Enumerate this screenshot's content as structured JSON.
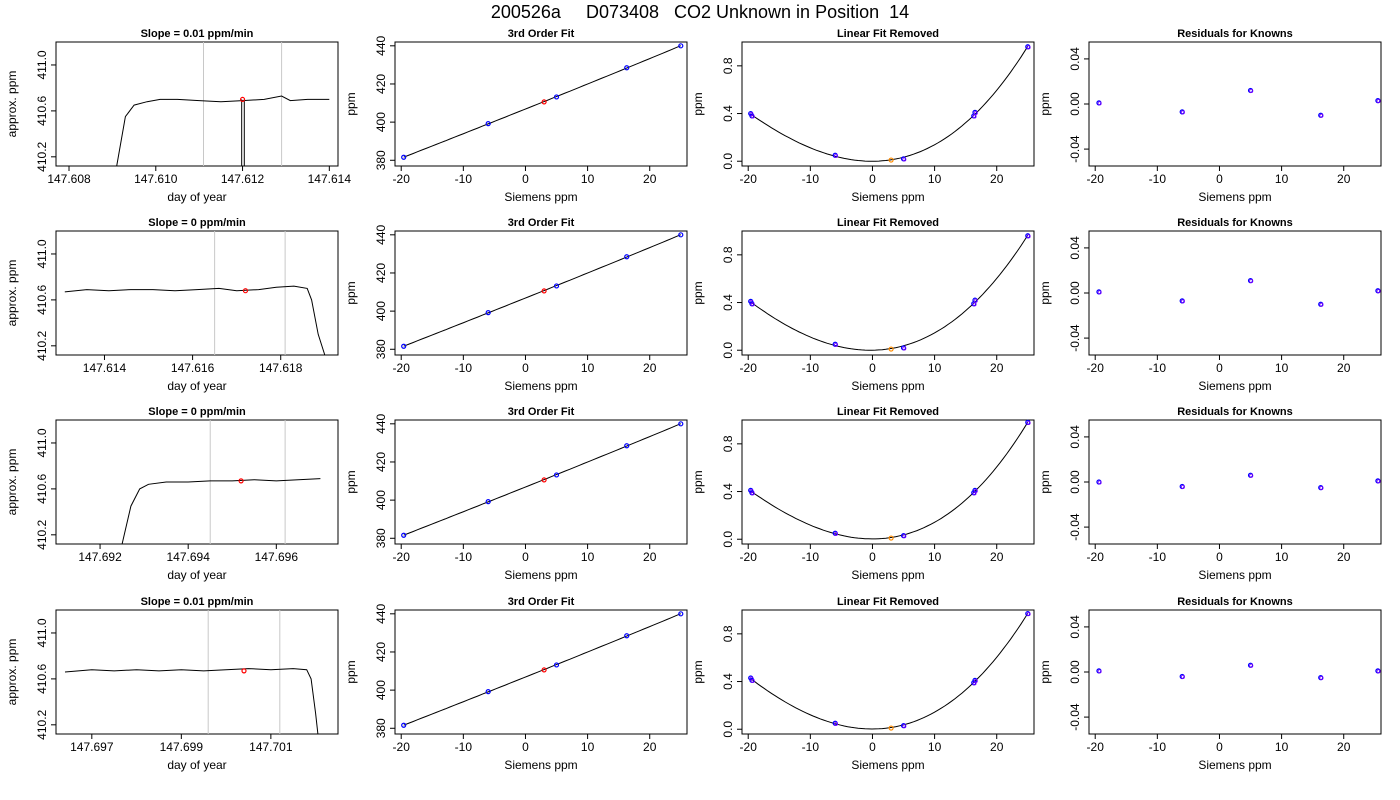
{
  "title": "200526a     D073408   CO2 Unknown in Position  14",
  "colors": {
    "axis": "#000000",
    "known": "#0000ff",
    "unknown": "#ff0000",
    "unknown_resid": "#ff8c00",
    "resid": "#7b00ff",
    "vline": "#c8c8c8"
  },
  "chart_data": [
    {
      "row": 1,
      "timeseries": {
        "type": "line",
        "title": "Slope =  0.01  ppm/min",
        "xlabel": "day of year",
        "ylabel": "approx. ppm",
        "xlim": [
          147.6077,
          147.6142
        ],
        "ylim": [
          410.12,
          411.2
        ],
        "xticks": [
          "147.608",
          "147.610",
          "147.612",
          "147.614"
        ],
        "xtick_values": [
          147.608,
          147.61,
          147.612,
          147.614
        ],
        "yticks": [
          "410.2",
          "410.6",
          "411.0"
        ],
        "ytick_values": [
          410.2,
          410.6,
          411.0
        ],
        "x": [
          147.6091,
          147.6093,
          147.6095,
          147.6098,
          147.6101,
          147.6105,
          147.611,
          147.6115,
          147.612,
          147.6125,
          147.6129,
          147.6131,
          147.6135,
          147.614
        ],
        "y": [
          410.12,
          410.55,
          410.65,
          410.68,
          410.7,
          410.7,
          410.69,
          410.68,
          410.69,
          410.7,
          410.73,
          410.69,
          410.7,
          410.7
        ],
        "vlines": [
          147.6111,
          147.6129
        ],
        "point": {
          "x": 147.612,
          "y": 410.7
        },
        "spikes": [
          147.61198,
          147.61204
        ]
      },
      "fit": {
        "type": "line",
        "title": "3rd Order Fit",
        "xlabel": "Siemens ppm",
        "ylabel": "ppm",
        "xlim": [
          -21,
          26
        ],
        "ylim": [
          377,
          442
        ],
        "xticks": [
          "-20",
          "-10",
          "0",
          "10",
          "20"
        ],
        "xtick_values": [
          -20,
          -10,
          0,
          10,
          20
        ],
        "yticks": [
          "380",
          "400",
          "420",
          "440"
        ],
        "ytick_values": [
          380,
          400,
          420,
          440
        ],
        "knowns_x": [
          -19.6,
          -6,
          5,
          16.3,
          25
        ],
        "knowns_y": [
          381.6,
          399.2,
          413.2,
          428.5,
          440
        ],
        "unknown": {
          "x": 3,
          "y": 410.6
        }
      },
      "linear_removed": {
        "type": "line",
        "title": "Linear Fit Removed",
        "xlabel": "Siemens ppm",
        "ylabel": "ppm",
        "xlim": [
          -21,
          26
        ],
        "ylim": [
          -0.04,
          1.0
        ],
        "xticks": [
          "-20",
          "-10",
          "0",
          "10",
          "20"
        ],
        "xtick_values": [
          -20,
          -10,
          0,
          10,
          20
        ],
        "yticks": [
          "0.0",
          "0.4",
          "0.8"
        ],
        "ytick_values": [
          0,
          0.4,
          0.8
        ],
        "knowns_x": [
          -19.6,
          -19.4,
          -6,
          5,
          16.3,
          16.5,
          25
        ],
        "knowns_y": [
          0.4,
          0.38,
          0.05,
          0.02,
          0.38,
          0.41,
          0.96
        ],
        "unknown": {
          "x": 3,
          "y": 0.01
        }
      },
      "residuals": {
        "type": "scatter",
        "title": "Residuals for Knowns",
        "xlabel": "Siemens ppm",
        "ylabel": "ppm",
        "xlim": [
          -21,
          26
        ],
        "ylim": [
          -0.055,
          0.055
        ],
        "xticks": [
          "-20",
          "-10",
          "0",
          "10",
          "20"
        ],
        "xtick_values": [
          -20,
          -10,
          0,
          10,
          20
        ],
        "yticks": [
          "-0.04",
          "0.00",
          "0.04"
        ],
        "ytick_values": [
          -0.04,
          0,
          0.04
        ],
        "x": [
          -19.4,
          -6,
          5,
          16.3,
          25.5
        ],
        "y": [
          0.001,
          -0.007,
          0.012,
          -0.01,
          0.003
        ]
      }
    },
    {
      "row": 2,
      "timeseries": {
        "type": "line",
        "title": "Slope =  0  ppm/min",
        "xlabel": "day of year",
        "ylabel": "approx. ppm",
        "xlim": [
          147.6129,
          147.6193
        ],
        "ylim": [
          410.12,
          411.2
        ],
        "xticks": [
          "147.614",
          "147.616",
          "147.618"
        ],
        "xtick_values": [
          147.614,
          147.616,
          147.618
        ],
        "yticks": [
          "410.2",
          "410.6",
          "411.0"
        ],
        "ytick_values": [
          410.2,
          410.6,
          411.0
        ],
        "x": [
          147.6131,
          147.6136,
          147.6141,
          147.6146,
          147.6151,
          147.6156,
          147.6161,
          147.6166,
          147.617,
          147.6175,
          147.6179,
          147.6183,
          147.6186,
          147.6187,
          147.61885,
          147.619
        ],
        "y": [
          410.67,
          410.69,
          410.68,
          410.69,
          410.69,
          410.68,
          410.69,
          410.7,
          410.68,
          410.69,
          410.71,
          410.72,
          410.7,
          410.6,
          410.3,
          410.12
        ],
        "vlines": [
          147.6165,
          147.6181
        ],
        "point": {
          "x": 147.6172,
          "y": 410.68
        },
        "spikes": []
      },
      "fit": {
        "type": "line",
        "title": "3rd Order Fit",
        "xlabel": "Siemens ppm",
        "ylabel": "ppm",
        "xlim": [
          -21,
          26
        ],
        "ylim": [
          377,
          442
        ],
        "xticks": [
          "-20",
          "-10",
          "0",
          "10",
          "20"
        ],
        "xtick_values": [
          -20,
          -10,
          0,
          10,
          20
        ],
        "yticks": [
          "380",
          "400",
          "420",
          "440"
        ],
        "ytick_values": [
          380,
          400,
          420,
          440
        ],
        "knowns_x": [
          -19.6,
          -6,
          5,
          16.3,
          25
        ],
        "knowns_y": [
          381.6,
          399.2,
          413.2,
          428.5,
          440
        ],
        "unknown": {
          "x": 3,
          "y": 410.6
        }
      },
      "linear_removed": {
        "type": "line",
        "title": "Linear Fit Removed",
        "xlabel": "Siemens ppm",
        "ylabel": "ppm",
        "xlim": [
          -21,
          26
        ],
        "ylim": [
          -0.04,
          1.0
        ],
        "xticks": [
          "-20",
          "-10",
          "0",
          "10",
          "20"
        ],
        "xtick_values": [
          -20,
          -10,
          0,
          10,
          20
        ],
        "yticks": [
          "0.0",
          "0.4",
          "0.8"
        ],
        "ytick_values": [
          0,
          0.4,
          0.8
        ],
        "knowns_x": [
          -19.6,
          -19.4,
          -6,
          5,
          16.3,
          16.5,
          25
        ],
        "knowns_y": [
          0.41,
          0.39,
          0.05,
          0.02,
          0.39,
          0.42,
          0.96
        ],
        "unknown": {
          "x": 3,
          "y": 0.01
        }
      },
      "residuals": {
        "type": "scatter",
        "title": "Residuals for Knowns",
        "xlabel": "Siemens ppm",
        "ylabel": "ppm",
        "xlim": [
          -21,
          26
        ],
        "ylim": [
          -0.055,
          0.055
        ],
        "xticks": [
          "-20",
          "-10",
          "0",
          "10",
          "20"
        ],
        "xtick_values": [
          -20,
          -10,
          0,
          10,
          20
        ],
        "yticks": [
          "-0.04",
          "0.00",
          "0.04"
        ],
        "ytick_values": [
          -0.04,
          0,
          0.04
        ],
        "x": [
          -19.4,
          -6,
          5,
          16.3,
          25.5
        ],
        "y": [
          0.001,
          -0.007,
          0.011,
          -0.01,
          0.002
        ]
      }
    },
    {
      "row": 3,
      "timeseries": {
        "type": "line",
        "title": "Slope =  0  ppm/min",
        "xlabel": "day of year",
        "ylabel": "approx. ppm",
        "xlim": [
          147.691,
          147.6974
        ],
        "ylim": [
          410.12,
          411.2
        ],
        "xticks": [
          "147.692",
          "147.694",
          "147.696"
        ],
        "xtick_values": [
          147.692,
          147.694,
          147.696
        ],
        "yticks": [
          "410.2",
          "410.6",
          "411.0"
        ],
        "ytick_values": [
          410.2,
          410.6,
          411.0
        ],
        "x": [
          147.6925,
          147.6927,
          147.6929,
          147.6931,
          147.6935,
          147.694,
          147.6945,
          147.695,
          147.6955,
          147.696,
          147.6965,
          147.697
        ],
        "y": [
          410.12,
          410.45,
          410.6,
          410.64,
          410.66,
          410.66,
          410.67,
          410.67,
          410.68,
          410.67,
          410.68,
          410.69
        ],
        "vlines": [
          147.6945,
          147.6962
        ],
        "point": {
          "x": 147.6952,
          "y": 410.67
        },
        "spikes": []
      },
      "fit": {
        "type": "line",
        "title": "3rd Order Fit",
        "xlabel": "Siemens ppm",
        "ylabel": "ppm",
        "xlim": [
          -21,
          26
        ],
        "ylim": [
          377,
          442
        ],
        "xticks": [
          "-20",
          "-10",
          "0",
          "10",
          "20"
        ],
        "xtick_values": [
          -20,
          -10,
          0,
          10,
          20
        ],
        "yticks": [
          "380",
          "400",
          "420",
          "440"
        ],
        "ytick_values": [
          380,
          400,
          420,
          440
        ],
        "knowns_x": [
          -19.6,
          -6,
          5,
          16.3,
          25
        ],
        "knowns_y": [
          381.6,
          399.2,
          413.2,
          428.5,
          440
        ],
        "unknown": {
          "x": 3,
          "y": 410.6
        }
      },
      "linear_removed": {
        "type": "line",
        "title": "Linear Fit Removed",
        "xlabel": "Siemens ppm",
        "ylabel": "ppm",
        "xlim": [
          -21,
          26
        ],
        "ylim": [
          -0.04,
          1.0
        ],
        "xticks": [
          "-20",
          "-10",
          "0",
          "10",
          "20"
        ],
        "xtick_values": [
          -20,
          -10,
          0,
          10,
          20
        ],
        "yticks": [
          "0.0",
          "0.4",
          "0.8"
        ],
        "ytick_values": [
          0,
          0.4,
          0.8
        ],
        "knowns_x": [
          -19.6,
          -19.4,
          -6,
          5,
          16.3,
          16.5,
          25
        ],
        "knowns_y": [
          0.41,
          0.39,
          0.05,
          0.03,
          0.39,
          0.41,
          0.98
        ],
        "unknown": {
          "x": 3,
          "y": 0.01
        }
      },
      "residuals": {
        "type": "scatter",
        "title": "Residuals for Knowns",
        "xlabel": "Siemens ppm",
        "ylabel": "ppm",
        "xlim": [
          -21,
          26
        ],
        "ylim": [
          -0.055,
          0.055
        ],
        "xticks": [
          "-20",
          "-10",
          "0",
          "10",
          "20"
        ],
        "xtick_values": [
          -20,
          -10,
          0,
          10,
          20
        ],
        "yticks": [
          "-0.04",
          "0.00",
          "0.04"
        ],
        "ytick_values": [
          -0.04,
          0,
          0.04
        ],
        "x": [
          -19.4,
          -6,
          5,
          16.3,
          25.5
        ],
        "y": [
          0.0,
          -0.004,
          0.006,
          -0.005,
          0.001
        ]
      }
    },
    {
      "row": 4,
      "timeseries": {
        "type": "line",
        "title": "Slope =  0.01  ppm/min",
        "xlabel": "day of year",
        "ylabel": "approx. ppm",
        "xlim": [
          147.6962,
          147.7025
        ],
        "ylim": [
          410.12,
          411.2
        ],
        "xticks": [
          "147.697",
          "147.699",
          "147.701"
        ],
        "xtick_values": [
          147.697,
          147.699,
          147.701
        ],
        "yticks": [
          "410.2",
          "410.6",
          "411.0"
        ],
        "ytick_values": [
          410.2,
          410.6,
          411.0
        ],
        "x": [
          147.6964,
          147.697,
          147.6975,
          147.698,
          147.6985,
          147.699,
          147.6995,
          147.7,
          147.7005,
          147.701,
          147.7015,
          147.7018,
          147.7019,
          147.702,
          147.70205
        ],
        "y": [
          410.66,
          410.68,
          410.67,
          410.68,
          410.67,
          410.68,
          410.67,
          410.68,
          410.69,
          410.68,
          410.69,
          410.68,
          410.6,
          410.3,
          410.12
        ],
        "vlines": [
          147.6996,
          147.7012
        ],
        "point": {
          "x": 147.7004,
          "y": 410.67
        },
        "spikes": []
      },
      "fit": {
        "type": "line",
        "title": "3rd Order Fit",
        "xlabel": "Siemens ppm",
        "ylabel": "ppm",
        "xlim": [
          -21,
          26
        ],
        "ylim": [
          377,
          442
        ],
        "xticks": [
          "-20",
          "-10",
          "0",
          "10",
          "20"
        ],
        "xtick_values": [
          -20,
          -10,
          0,
          10,
          20
        ],
        "yticks": [
          "380",
          "400",
          "420",
          "440"
        ],
        "ytick_values": [
          380,
          400,
          420,
          440
        ],
        "knowns_x": [
          -19.6,
          -6,
          5,
          16.3,
          25
        ],
        "knowns_y": [
          381.6,
          399.2,
          413.2,
          428.5,
          440
        ],
        "unknown": {
          "x": 3,
          "y": 410.6
        }
      },
      "linear_removed": {
        "type": "line",
        "title": "Linear Fit Removed",
        "xlabel": "Siemens ppm",
        "ylabel": "ppm",
        "xlim": [
          -21,
          26
        ],
        "ylim": [
          -0.04,
          1.0
        ],
        "xticks": [
          "-20",
          "-10",
          "0",
          "10",
          "20"
        ],
        "xtick_values": [
          -20,
          -10,
          0,
          10,
          20
        ],
        "yticks": [
          "0.0",
          "0.4",
          "0.8"
        ],
        "ytick_values": [
          0,
          0.4,
          0.8
        ],
        "knowns_x": [
          -19.6,
          -19.4,
          -6,
          5,
          16.3,
          16.5,
          25
        ],
        "knowns_y": [
          0.43,
          0.41,
          0.05,
          0.03,
          0.39,
          0.41,
          0.97
        ],
        "unknown": {
          "x": 3,
          "y": 0.01
        }
      },
      "residuals": {
        "type": "scatter",
        "title": "Residuals for Knowns",
        "xlabel": "Siemens ppm",
        "ylabel": "ppm",
        "xlim": [
          -21,
          26
        ],
        "ylim": [
          -0.055,
          0.055
        ],
        "xticks": [
          "-20",
          "-10",
          "0",
          "10",
          "20"
        ],
        "xtick_values": [
          -20,
          -10,
          0,
          10,
          20
        ],
        "yticks": [
          "-0.04",
          "0.00",
          "0.04"
        ],
        "ytick_values": [
          -0.04,
          0,
          0.04
        ],
        "x": [
          -19.4,
          -6,
          5,
          16.3,
          25.5
        ],
        "y": [
          0.001,
          -0.004,
          0.006,
          -0.005,
          0.001
        ]
      }
    }
  ]
}
